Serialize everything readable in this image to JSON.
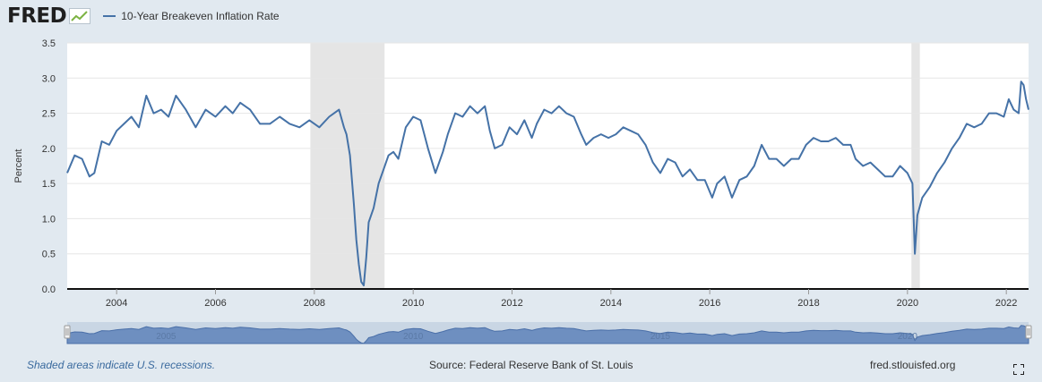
{
  "header": {
    "logo_text": "FRED",
    "logo_icon": "chart-line-icon"
  },
  "chart_data": {
    "type": "line",
    "title": "",
    "xlabel": "",
    "ylabel": "Percent",
    "xlim": [
      2003.0,
      2022.45
    ],
    "ylim": [
      0,
      3.5
    ],
    "yticks": [
      "0.0",
      "0.5",
      "1.0",
      "1.5",
      "2.0",
      "2.5",
      "3.0",
      "3.5"
    ],
    "yticks_values": [
      0,
      0.5,
      1.0,
      1.5,
      2.0,
      2.5,
      3.0,
      3.5
    ],
    "xticks": [
      "2004",
      "2006",
      "2008",
      "2010",
      "2012",
      "2014",
      "2016",
      "2018",
      "2020",
      "2022"
    ],
    "xticks_values": [
      2004,
      2006,
      2008,
      2010,
      2012,
      2014,
      2016,
      2018,
      2020,
      2022
    ],
    "grid": true,
    "legend": "top-left",
    "recessions": [
      [
        2007.92,
        2009.42
      ],
      [
        2020.08,
        2020.25
      ]
    ],
    "navigator_labels": [
      "2005",
      "2010",
      "2015",
      "2020"
    ],
    "series": [
      {
        "name": "10-Year Breakeven Inflation Rate",
        "color": "#4572a7",
        "x": [
          2003.0,
          2003.15,
          2003.3,
          2003.45,
          2003.55,
          2003.7,
          2003.85,
          2004.0,
          2004.15,
          2004.3,
          2004.45,
          2004.6,
          2004.75,
          2004.9,
          2005.05,
          2005.2,
          2005.4,
          2005.6,
          2005.8,
          2006.0,
          2006.2,
          2006.35,
          2006.5,
          2006.7,
          2006.9,
          2007.1,
          2007.3,
          2007.5,
          2007.7,
          2007.9,
          2008.1,
          2008.3,
          2008.5,
          2008.6,
          2008.65,
          2008.72,
          2008.8,
          2008.85,
          2008.9,
          2008.95,
          2009.0,
          2009.05,
          2009.1,
          2009.2,
          2009.3,
          2009.4,
          2009.5,
          2009.6,
          2009.7,
          2009.85,
          2010.0,
          2010.15,
          2010.3,
          2010.45,
          2010.6,
          2010.7,
          2010.85,
          2011.0,
          2011.15,
          2011.3,
          2011.45,
          2011.55,
          2011.65,
          2011.8,
          2011.95,
          2012.1,
          2012.25,
          2012.4,
          2012.5,
          2012.65,
          2012.8,
          2012.95,
          2013.1,
          2013.25,
          2013.4,
          2013.5,
          2013.65,
          2013.8,
          2013.95,
          2014.1,
          2014.25,
          2014.4,
          2014.55,
          2014.7,
          2014.85,
          2015.0,
          2015.15,
          2015.3,
          2015.45,
          2015.6,
          2015.75,
          2015.9,
          2016.05,
          2016.15,
          2016.3,
          2016.45,
          2016.6,
          2016.75,
          2016.9,
          2017.05,
          2017.2,
          2017.35,
          2017.5,
          2017.65,
          2017.8,
          2017.95,
          2018.1,
          2018.25,
          2018.4,
          2018.55,
          2018.7,
          2018.85,
          2018.95,
          2019.1,
          2019.25,
          2019.4,
          2019.55,
          2019.7,
          2019.85,
          2020.0,
          2020.1,
          2020.15,
          2020.2,
          2020.3,
          2020.45,
          2020.6,
          2020.75,
          2020.9,
          2021.05,
          2021.2,
          2021.35,
          2021.5,
          2021.65,
          2021.8,
          2021.95,
          2022.05,
          2022.15,
          2022.25,
          2022.3,
          2022.35,
          2022.4,
          2022.45
        ],
        "y": [
          1.65,
          1.9,
          1.85,
          1.6,
          1.65,
          2.1,
          2.05,
          2.25,
          2.35,
          2.45,
          2.3,
          2.75,
          2.5,
          2.55,
          2.45,
          2.75,
          2.55,
          2.3,
          2.55,
          2.45,
          2.6,
          2.5,
          2.65,
          2.55,
          2.35,
          2.35,
          2.45,
          2.35,
          2.3,
          2.4,
          2.3,
          2.45,
          2.55,
          2.3,
          2.2,
          1.9,
          1.2,
          0.7,
          0.35,
          0.1,
          0.05,
          0.45,
          0.95,
          1.15,
          1.5,
          1.7,
          1.9,
          1.95,
          1.85,
          2.3,
          2.45,
          2.4,
          2.0,
          1.65,
          1.95,
          2.2,
          2.5,
          2.45,
          2.6,
          2.5,
          2.6,
          2.25,
          2.0,
          2.05,
          2.3,
          2.2,
          2.4,
          2.15,
          2.35,
          2.55,
          2.5,
          2.6,
          2.5,
          2.45,
          2.2,
          2.05,
          2.15,
          2.2,
          2.15,
          2.2,
          2.3,
          2.25,
          2.2,
          2.05,
          1.8,
          1.65,
          1.85,
          1.8,
          1.6,
          1.7,
          1.55,
          1.55,
          1.3,
          1.5,
          1.6,
          1.3,
          1.55,
          1.6,
          1.75,
          2.05,
          1.85,
          1.85,
          1.75,
          1.85,
          1.85,
          2.05,
          2.15,
          2.1,
          2.1,
          2.15,
          2.05,
          2.05,
          1.85,
          1.75,
          1.8,
          1.7,
          1.6,
          1.6,
          1.75,
          1.65,
          1.5,
          0.5,
          1.05,
          1.3,
          1.45,
          1.65,
          1.8,
          2.0,
          2.15,
          2.35,
          2.3,
          2.35,
          2.5,
          2.5,
          2.45,
          2.7,
          2.55,
          2.5,
          2.95,
          2.9,
          2.7,
          2.55
        ]
      }
    ]
  },
  "footer": {
    "recession_note": "Shaded areas indicate U.S. recessions.",
    "source": "Source: Federal Reserve Bank of St. Louis",
    "url": "fred.stlouisfed.org"
  }
}
